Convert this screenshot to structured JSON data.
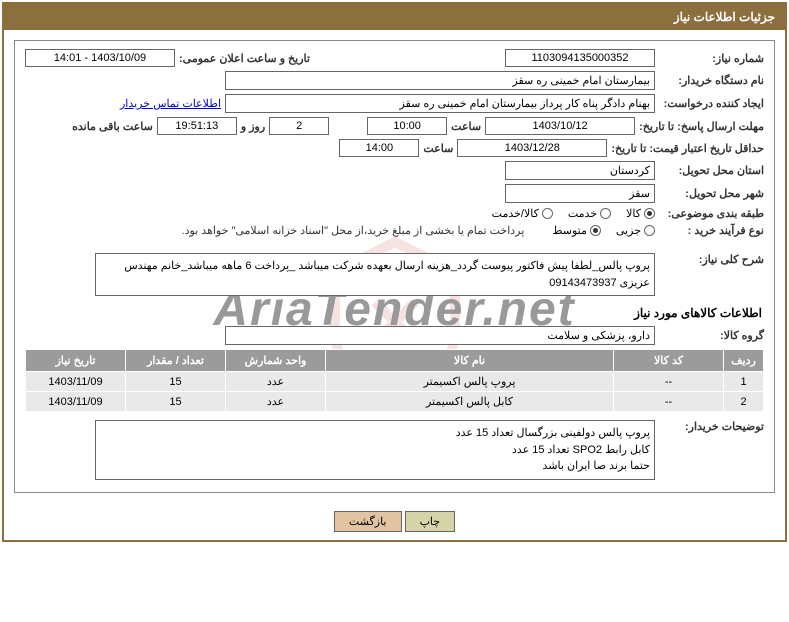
{
  "title": "جزئیات اطلاعات نیاز",
  "fields": {
    "need_number_label": "شماره نیاز:",
    "need_number": "1103094135000352",
    "announce_label": "تاریخ و ساعت اعلان عمومی:",
    "announce_value": "1403/10/09 - 14:01",
    "buyer_org_label": "نام دستگاه خریدار:",
    "buyer_org": "بیمارستان امام خمینی ره سقز",
    "requester_label": "ایجاد کننده درخواست:",
    "requester": "بهنام دادگر پناه کار پرداز بیمارستان امام خمینی ره سقز",
    "contact_link": "اطلاعات تماس خریدار",
    "deadline_send_label": "مهلت ارسال پاسخ: تا تاریخ:",
    "deadline_date": "1403/10/12",
    "time_label": "ساعت",
    "deadline_time": "10:00",
    "days_label_before": "",
    "days_value": "2",
    "days_label_after": "روز و",
    "countdown": "19:51:13",
    "remaining_label": "ساعت باقی مانده",
    "min_validity_label": "حداقل تاریخ اعتبار قیمت: تا تاریخ:",
    "min_validity_date": "1403/12/28",
    "min_validity_time": "14:00",
    "delivery_province_label": "استان محل تحویل:",
    "delivery_province": "کردستان",
    "delivery_city_label": "شهر محل تحویل:",
    "delivery_city": "سقز",
    "category_label": "طبقه بندی موضوعی:",
    "cat_goods": "کالا",
    "cat_service": "خدمت",
    "cat_goods_service": "کالا/خدمت",
    "purchase_type_label": "نوع فرآیند خرید :",
    "pt_small": "جزیی",
    "pt_medium": "متوسط",
    "payment_note": "پرداخت تمام یا بخشی از مبلغ خرید،از محل \"اسناد خزانه اسلامی\" خواهد بود.",
    "desc_label": "شرح کلی نیاز:",
    "desc_text": "پروپ پالس_لطفا پیش فاکتور پیوست گردد_هزینه ارسال بعهده شرکت میباشد _پرداخت 6 ماهه میباشد_خانم مهندس عزیزی 09143473937",
    "items_section": "اطلاعات کالاهای مورد نیاز",
    "goods_group_label": "گروه کالا:",
    "goods_group": "دارو، پزشکی و سلامت",
    "buyer_notes_label": "توضیحات خریدار:",
    "buyer_notes_l1": "پروپ پالس دولفینی بزرگسال   تعداد 15 عدد",
    "buyer_notes_l2": "کابل رابط SPO2  تعداد 15 عدد",
    "buyer_notes_l3": "حتما برند صا ایران باشد",
    "btn_print": "چاپ",
    "btn_back": "بازگشت"
  },
  "table": {
    "headers": [
      "ردیف",
      "کد کالا",
      "نام کالا",
      "واحد شمارش",
      "تعداد / مقدار",
      "تاریخ نیاز"
    ],
    "rows": [
      [
        "1",
        "--",
        "پروپ پالس اکسیمتر",
        "عدد",
        "15",
        "1403/11/09"
      ],
      [
        "2",
        "--",
        "کابل پالس اکسیمتر",
        "عدد",
        "15",
        "1403/11/09"
      ]
    ]
  },
  "colors": {
    "header_bg": "#8b6f3e",
    "table_header_bg": "#9b9b9b",
    "table_cell_bg": "#e9e9e9"
  }
}
